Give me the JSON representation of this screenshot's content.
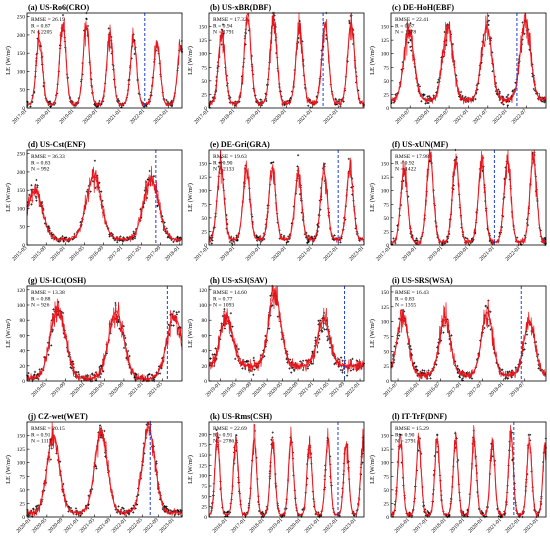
{
  "figure": {
    "observed_color": "#000000",
    "modeled_color": "#e8141b",
    "cutoff_color": "#1f3fd6",
    "marker": "plus",
    "y_axis_label": "LE (W/m²)"
  },
  "chart_data": [
    {
      "type": "line",
      "panel": "a",
      "title": "(a) US-Ro6(CRO)",
      "stats": [
        "RMSE = 26.19",
        "R = 0.87",
        "N = 2205"
      ],
      "ylabel": "LE (W/m²)",
      "ylim": [
        0,
        260
      ],
      "yticks": [
        0,
        50,
        100,
        150,
        200,
        250
      ],
      "x_range": [
        "2017-01-01",
        "2023-08-01"
      ],
      "xticks": [
        "2017-01",
        "2018-01",
        "2019-01",
        "2020-01",
        "2021-01",
        "2022-01",
        "2023-01"
      ],
      "cutoff_date": "2022-01-01",
      "peaks": [
        {
          "date": "2017-07-10",
          "value": 190
        },
        {
          "date": "2018-07-10",
          "value": 230
        },
        {
          "date": "2019-07-10",
          "value": 230
        },
        {
          "date": "2020-07-10",
          "value": 200
        },
        {
          "date": "2021-07-10",
          "value": 190
        },
        {
          "date": "2022-07-10",
          "value": 180
        },
        {
          "date": "2023-07-10",
          "value": 170
        }
      ],
      "baseline": 10
    },
    {
      "type": "line",
      "panel": "b",
      "title": "(b) US-xBR(DBF)",
      "stats": [
        "RMSE = 17.32",
        "R = 0.94",
        "N = 1791"
      ],
      "ylabel": "LE (W/m²)",
      "ylim": [
        0,
        175
      ],
      "yticks": [
        0,
        25,
        50,
        75,
        100,
        125,
        150
      ],
      "x_range": [
        "2017-01-01",
        "2022-12-31"
      ],
      "xticks": [
        "2017-01",
        "2018-01",
        "2019-01",
        "2020-01",
        "2021-01",
        "2022-01"
      ],
      "cutoff_date": "2021-06-01",
      "peaks": [
        {
          "date": "2017-07-01",
          "value": 135
        },
        {
          "date": "2018-07-01",
          "value": 165
        },
        {
          "date": "2019-07-01",
          "value": 160
        },
        {
          "date": "2020-07-01",
          "value": 150
        },
        {
          "date": "2021-07-01",
          "value": 155
        },
        {
          "date": "2022-07-01",
          "value": 160
        }
      ],
      "baseline": 8
    },
    {
      "type": "line",
      "panel": "c",
      "title": "(c) DE-HoH(EBF)",
      "stats": [
        "RMSE = 22.41",
        "R = 0.87",
        "N = 1378"
      ],
      "ylabel": "LE (W/m²)",
      "ylim": [
        0,
        175
      ],
      "yticks": [
        0,
        25,
        50,
        75,
        100,
        125,
        150
      ],
      "x_range": [
        "2019-01-01",
        "2022-12-31"
      ],
      "xticks": [
        "2019-07",
        "2020-01",
        "2020-07",
        "2021-01",
        "2021-07",
        "2022-01",
        "2022-07"
      ],
      "cutoff_date": "2022-04-01",
      "peaks": [
        {
          "date": "2019-06-20",
          "value": 140
        },
        {
          "date": "2020-06-20",
          "value": 150
        },
        {
          "date": "2021-06-20",
          "value": 150
        },
        {
          "date": "2022-06-20",
          "value": 160
        }
      ],
      "baseline": 15
    },
    {
      "type": "line",
      "panel": "d",
      "title": "(d) US-Cst(ENF)",
      "stats": [
        "RMSE = 36.33",
        "R = 0.83",
        "N = 992"
      ],
      "ylabel": "LE (W/m²)",
      "ylim": [
        0,
        260
      ],
      "yticks": [
        0,
        50,
        100,
        150,
        200,
        250
      ],
      "x_range": [
        "2015-05-01",
        "2018-01-15"
      ],
      "xticks": [
        "2015-05",
        "2015-09",
        "2016-01",
        "2016-05",
        "2016-09",
        "2017-01",
        "2017-05",
        "2017-09",
        "2018-01"
      ],
      "cutoff_date": "2017-08-01",
      "peaks": [
        {
          "date": "2015-06-20",
          "value": 150
        },
        {
          "date": "2016-07-01",
          "value": 190
        },
        {
          "date": "2017-07-01",
          "value": 180
        }
      ],
      "baseline": 15
    },
    {
      "type": "line",
      "panel": "e",
      "title": "(e) DE-Gri(GRA)",
      "stats": [
        "RMSE = 19.63",
        "R = 0.90",
        "N = 2133"
      ],
      "ylabel": "LE (W/m²)",
      "ylim": [
        0,
        175
      ],
      "yticks": [
        0,
        25,
        50,
        75,
        100,
        125,
        150
      ],
      "x_range": [
        "2017-01-01",
        "2023-01-01"
      ],
      "xticks": [
        "2017-01",
        "2018-01",
        "2019-01",
        "2020-01",
        "2021-01",
        "2022-01",
        "2023-01"
      ],
      "cutoff_date": "2022-01-01",
      "peaks": [
        {
          "date": "2017-06-15",
          "value": 145
        },
        {
          "date": "2018-06-15",
          "value": 140
        },
        {
          "date": "2019-06-15",
          "value": 140
        },
        {
          "date": "2020-06-15",
          "value": 130
        },
        {
          "date": "2021-06-15",
          "value": 135
        },
        {
          "date": "2022-06-15",
          "value": 140
        }
      ],
      "baseline": 10
    },
    {
      "type": "line",
      "panel": "f",
      "title": "(f) US-xUN(MF)",
      "stats": [
        "RMSE = 17.98",
        "R = 0.92",
        "N = 1422"
      ],
      "ylabel": "LE (W/m²)",
      "ylim": [
        0,
        175
      ],
      "yticks": [
        0,
        25,
        50,
        75,
        100,
        125,
        150
      ],
      "x_range": [
        "2017-01-01",
        "2022-12-31"
      ],
      "xticks": [
        "2017-01",
        "2018-01",
        "2019-01",
        "2020-01",
        "2021-01",
        "2022-01"
      ],
      "cutoff_date": "2021-01-01",
      "peaks": [
        {
          "date": "2017-07-05",
          "value": 140
        },
        {
          "date": "2018-07-05",
          "value": 165
        },
        {
          "date": "2019-07-05",
          "value": 155
        },
        {
          "date": "2020-07-05",
          "value": 150
        },
        {
          "date": "2021-07-05",
          "value": 155
        },
        {
          "date": "2022-07-05",
          "value": 160
        }
      ],
      "baseline": 5
    },
    {
      "type": "line",
      "panel": "g",
      "title": "(g) US-ICt(OSH)",
      "stats": [
        "RMSE = 13.38",
        "R = 0.88",
        "N = 926"
      ],
      "ylabel": "LE (W/m²)",
      "ylim": [
        0,
        125
      ],
      "yticks": [
        0,
        20,
        40,
        60,
        80,
        100,
        120
      ],
      "x_range": [
        "2019-01-01",
        "2021-09-01"
      ],
      "xticks": [
        "2019-05",
        "2019-09",
        "2020-01",
        "2020-05",
        "2020-09",
        "2021-01",
        "2021-05"
      ],
      "cutoff_date": "2021-06-01",
      "peaks": [
        {
          "date": "2019-07-15",
          "value": 95
        },
        {
          "date": "2020-07-15",
          "value": 90
        },
        {
          "date": "2021-07-15",
          "value": 85
        }
      ],
      "baseline": 3
    },
    {
      "type": "line",
      "panel": "h",
      "title": "(h) US-xSJ(SAV)",
      "stats": [
        "RMSE = 14.60",
        "R = 0.77",
        "N = 1093"
      ],
      "ylabel": "LE (W/m²)",
      "ylim": [
        0,
        125
      ],
      "yticks": [
        0,
        20,
        40,
        60,
        80,
        100,
        120
      ],
      "x_range": [
        "2018-10-01",
        "2022-02-01"
      ],
      "xticks": [
        "2019-01",
        "2019-05",
        "2019-09",
        "2020-01",
        "2020-05",
        "2020-09",
        "2021-01",
        "2021-05",
        "2021-09",
        "2022-01"
      ],
      "cutoff_date": "2021-09-01",
      "peaks": [
        {
          "date": "2019-02-15",
          "value": 85
        },
        {
          "date": "2020-03-01",
          "value": 115
        },
        {
          "date": "2021-03-20",
          "value": 80
        }
      ],
      "baseline": 20
    },
    {
      "type": "line",
      "panel": "i",
      "title": "(i) US-SRS(WSA)",
      "stats": [
        "RMSE = 16.43",
        "R = 0.83",
        "N = 1355"
      ],
      "ylabel": "LE (W/m²)",
      "ylim": [
        0,
        160
      ],
      "yticks": [
        0,
        25,
        50,
        75,
        100,
        125,
        150
      ],
      "x_range": [
        "2015-05-01",
        "2019-01-01"
      ],
      "xticks": [
        "2015-07",
        "2016-01",
        "2016-07",
        "2017-01",
        "2017-07",
        "2018-01",
        "2018-07"
      ],
      "cutoff_date": "2018-06-01",
      "peaks": [
        {
          "date": "2015-08-10",
          "value": 110
        },
        {
          "date": "2016-08-10",
          "value": 105
        },
        {
          "date": "2017-08-10",
          "value": 115
        },
        {
          "date": "2018-08-10",
          "value": 100
        }
      ],
      "baseline": 10
    },
    {
      "type": "line",
      "panel": "j",
      "title": "(j) CZ-wet(WET)",
      "stats": [
        "RMSE = 20.15",
        "R = 0.91",
        "N = 1117"
      ],
      "ylabel": "LE (W/m²)",
      "ylim": [
        0,
        175
      ],
      "yticks": [
        0,
        25,
        50,
        75,
        100,
        125,
        150
      ],
      "x_range": [
        "2019-12-01",
        "2023-03-01"
      ],
      "xticks": [
        "2020-01",
        "2020-05",
        "2020-09",
        "2021-01",
        "2021-05",
        "2021-09",
        "2022-01",
        "2022-05",
        "2022-09",
        "2023-01"
      ],
      "cutoff_date": "2022-07-01",
      "peaks": [
        {
          "date": "2020-06-20",
          "value": 150
        },
        {
          "date": "2021-06-20",
          "value": 155
        },
        {
          "date": "2022-06-20",
          "value": 165
        }
      ],
      "baseline": 8
    },
    {
      "type": "line",
      "panel": "k",
      "title": "(k) US-Rms(CSH)",
      "stats": [
        "RMSE = 22.69",
        "R = 0.91",
        "N = 2786"
      ],
      "ylabel": "LE (W/m²)",
      "ylim": [
        0,
        230
      ],
      "yticks": [
        0,
        25,
        50,
        75,
        100,
        125,
        150,
        175,
        200
      ],
      "x_range": [
        "2015-01-01",
        "2023-06-01"
      ],
      "xticks": [
        "2016-01",
        "2017-01",
        "2018-01",
        "2019-01",
        "2020-01",
        "2021-01",
        "2022-01",
        "2023-01"
      ],
      "cutoff_date": "2022-01-01",
      "peaks": [
        {
          "date": "2015-06-15",
          "value": 190
        },
        {
          "date": "2016-06-15",
          "value": 185
        },
        {
          "date": "2017-06-15",
          "value": 190
        },
        {
          "date": "2018-06-15",
          "value": 185
        },
        {
          "date": "2019-06-15",
          "value": 190
        },
        {
          "date": "2020-06-15",
          "value": 180
        },
        {
          "date": "2021-06-15",
          "value": 185
        },
        {
          "date": "2022-06-15",
          "value": 180
        },
        {
          "date": "2023-05-15",
          "value": 175
        }
      ],
      "baseline": 5
    },
    {
      "type": "line",
      "panel": "l",
      "title": "(l) IT-TrF(DNF)",
      "stats": [
        "RMSE = 15.29",
        "R = 0.90",
        "N = 2791"
      ],
      "ylabel": "LE (W/m²)",
      "ylim": [
        0,
        175
      ],
      "yticks": [
        0,
        25,
        50,
        75,
        100,
        125,
        150
      ],
      "x_range": [
        "2015-01-01",
        "2023-06-01"
      ],
      "xticks": [
        "2016-01",
        "2017-01",
        "2018-01",
        "2019-01",
        "2020-01",
        "2021-01",
        "2022-01",
        "2023-01"
      ],
      "cutoff_date": "2021-09-01",
      "peaks": [
        {
          "date": "2015-07-05",
          "value": 150
        },
        {
          "date": "2016-07-05",
          "value": 140
        },
        {
          "date": "2017-07-05",
          "value": 145
        },
        {
          "date": "2018-07-05",
          "value": 140
        },
        {
          "date": "2019-07-05",
          "value": 145
        },
        {
          "date": "2020-07-05",
          "value": 140
        },
        {
          "date": "2021-07-05",
          "value": 150
        },
        {
          "date": "2022-07-05",
          "value": 140
        },
        {
          "date": "2023-05-20",
          "value": 135
        }
      ],
      "baseline": 3
    }
  ]
}
